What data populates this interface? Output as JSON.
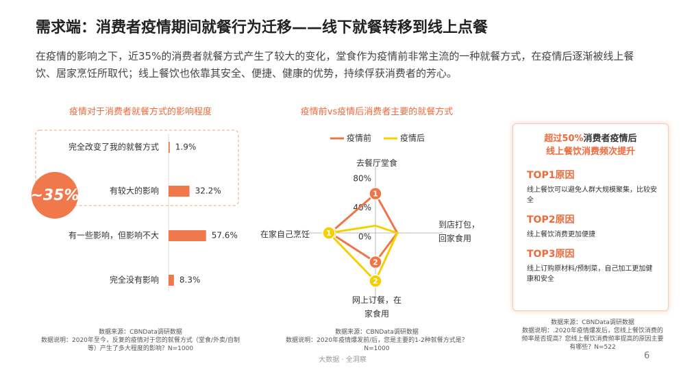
{
  "header": {
    "title": "需求端：消费者疫情期间就餐行为迁移——线下就餐转移到线上点餐",
    "subtitle": "在疫情的影响之下，近35%的消费者就餐方式产生了较大的变化，堂食作为疫情前非常主流的一种就餐方式，在疫情后逐渐被线上餐饮、居家烹饪所取代；线上餐饮也依靠其安全、便捷、健康的优势，持续俘获消费者的芳心。"
  },
  "chart_data": [
    {
      "type": "bar",
      "orientation": "horizontal",
      "title": "疫情对于消费者就餐方式的影响程度",
      "categories": [
        "完全改变了我的就餐方式",
        "有较大的影响",
        "有一些影响，但影响不大",
        "完全没有影响"
      ],
      "values": [
        1.9,
        32.2,
        57.6,
        8.3
      ],
      "value_labels": [
        "1.9%",
        "32.2%",
        "57.6%",
        "8.3%"
      ],
      "color": "#f0784b",
      "annotation": "~35%",
      "source": "数据来源：CBNData调研数据",
      "note": "数据说明：2020年至今，反复的疫情对于您的就餐方式（堂食/外卖/自制等）产生了多大程度的影响？N=1000"
    },
    {
      "type": "radar",
      "title": "疫情前vs疫情后消费者主要的就餐方式",
      "categories": [
        "去餐厅堂食",
        "到店打包，回家食用",
        "网上订餐，在家食用",
        "在家自己烹饪"
      ],
      "series": [
        {
          "name": "疫情前",
          "color": "#ee7548",
          "values": [
            54,
            30,
            40,
            62
          ],
          "rank_labels": [
            "1",
            null,
            "2",
            "1"
          ]
        },
        {
          "name": "疫情后",
          "color": "#f5d000",
          "values": [
            10,
            30,
            66,
            64
          ],
          "rank_labels": [
            null,
            null,
            "2",
            "1"
          ]
        }
      ],
      "rlim": [
        0,
        80
      ],
      "rticks": [
        {
          "value": 0,
          "label": "0%"
        },
        {
          "value": 40,
          "label": "40%"
        },
        {
          "value": 80,
          "label": "80%"
        }
      ],
      "source": "数据来源：CBNData调研数据",
      "note": "数据说明：2020年疫情爆发前/后，您是主要的1-2种就餐方式是？N=1000"
    }
  ],
  "panel": {
    "headline_highlight": "超过50%",
    "headline": "消费者疫情后",
    "headline_line2": "线上餐饮消费频次提升",
    "reasons": [
      {
        "title": "TOP1原因",
        "text": "线上餐饮可以避免人群大规模聚集，比较安全"
      },
      {
        "title": "TOP2原因",
        "text": "线上餐饮消费更加便捷"
      },
      {
        "title": "TOP3原因",
        "text": "线上订购原材料/预制菜，自己加工更加健康和安全"
      }
    ],
    "source": "数据来源：CBNData调研数据",
    "note": "数据说明：.2020年疫情爆发后，您线上餐饮消费的频率是否提高？您线上餐饮消费频率提高的原因主要有哪些？N=522"
  },
  "footer": {
    "slogan": "大数据 · 全洞察",
    "page": "6"
  }
}
